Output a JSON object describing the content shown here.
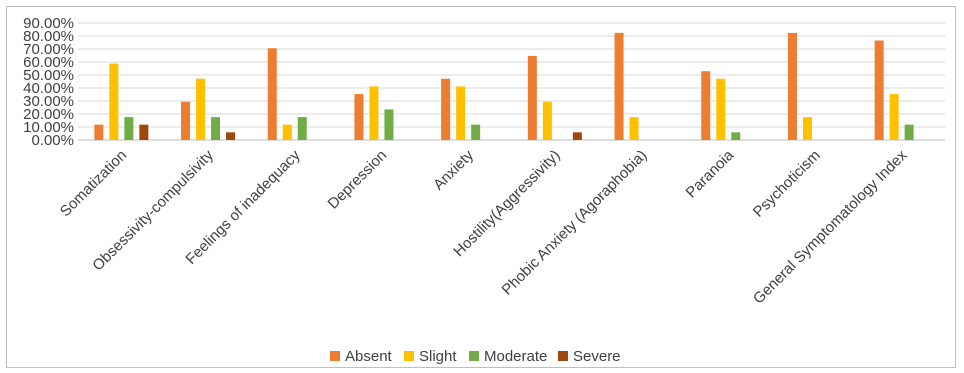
{
  "chart_data": {
    "type": "bar",
    "title": "",
    "xlabel": "",
    "ylabel": "",
    "ylim": [
      0,
      90
    ],
    "ytick_step": 10,
    "ytick_labels": [
      "0.00%",
      "10.00%",
      "20.00%",
      "30.00%",
      "40.00%",
      "50.00%",
      "60.00%",
      "70.00%",
      "80.00%",
      "90.00%"
    ],
    "grid": true,
    "legend_position": "bottom",
    "categories": [
      "Somatization",
      "Obsessivity-compulsivity",
      "Feelings of inadequacy",
      "Depression",
      "Anxiety",
      "Hostility(Aggressivity)",
      "Phobic Anxiety (Agoraphobia)",
      "Paranoia",
      "Psychoticism",
      "General Symptomatology Index"
    ],
    "series": [
      {
        "name": "Absent",
        "color": "#ED7D31",
        "values": [
          11.8,
          29.4,
          70.6,
          35.3,
          47.1,
          64.7,
          82.4,
          52.9,
          82.4,
          76.5
        ]
      },
      {
        "name": "Slight",
        "color": "#FFC000",
        "values": [
          58.8,
          47.1,
          11.8,
          41.2,
          41.2,
          29.4,
          17.6,
          47.1,
          17.6,
          35.3
        ]
      },
      {
        "name": "Moderate",
        "color": "#70AD47",
        "values": [
          17.6,
          17.6,
          17.6,
          23.5,
          11.8,
          0,
          0,
          5.9,
          0,
          11.8
        ]
      },
      {
        "name": "Severe",
        "color": "#9E480E",
        "values": [
          11.8,
          5.9,
          0,
          0,
          0,
          5.9,
          0,
          0,
          0,
          0
        ]
      }
    ]
  }
}
